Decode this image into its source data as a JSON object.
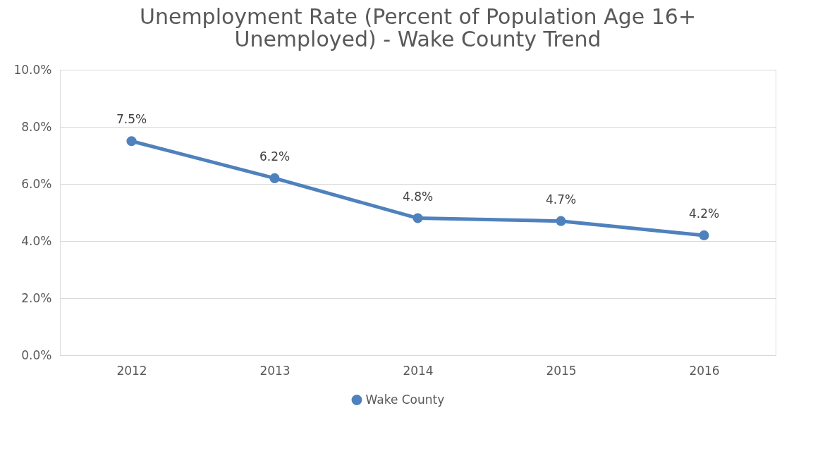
{
  "chart_data": {
    "type": "line",
    "title": [
      "Unemployment Rate (Percent of Population Age 16+",
      "Unemployed) - Wake County Trend"
    ],
    "categories": [
      "2012",
      "2013",
      "2014",
      "2015",
      "2016"
    ],
    "series": [
      {
        "name": "Wake County",
        "color": "#4f81bd",
        "values": [
          7.5,
          6.2,
          4.8,
          4.7,
          4.2
        ],
        "value_labels": [
          "7.5%",
          "6.2%",
          "4.8%",
          "4.7%",
          "4.2%"
        ]
      }
    ],
    "ylim": [
      0,
      10
    ],
    "yticks": [
      {
        "value": 0,
        "label": "0.0%"
      },
      {
        "value": 2,
        "label": "2.0%"
      },
      {
        "value": 4,
        "label": "4.0%"
      },
      {
        "value": 6,
        "label": "6.0%"
      },
      {
        "value": 8,
        "label": "8.0%"
      },
      {
        "value": 10,
        "label": "10.0%"
      }
    ],
    "grid": "y",
    "legend": "bottom",
    "marker": "circle",
    "line_style": "solid"
  }
}
